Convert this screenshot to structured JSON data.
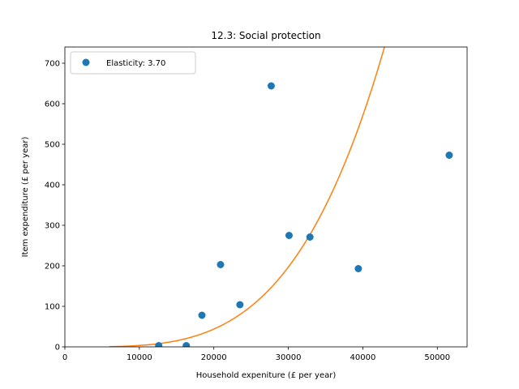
{
  "chart_data": {
    "type": "scatter",
    "title": "12.3: Social protection",
    "xlabel": "Household expeniture (£ per year)",
    "ylabel": "Item expenditure (£ per year)",
    "xlim": [
      0,
      54000
    ],
    "ylim": [
      0,
      740
    ],
    "xticks": [
      0,
      10000,
      20000,
      30000,
      40000,
      50000
    ],
    "yticks": [
      0,
      100,
      200,
      300,
      400,
      500,
      600,
      700
    ],
    "legend_position": "top-left",
    "series": [
      {
        "name": "Elasticity: 3.70",
        "kind": "points",
        "color": "#1f77b4",
        "points": [
          {
            "x": 12600,
            "y": 3
          },
          {
            "x": 16300,
            "y": 3
          },
          {
            "x": 18400,
            "y": 78
          },
          {
            "x": 20900,
            "y": 203
          },
          {
            "x": 23500,
            "y": 104
          },
          {
            "x": 27700,
            "y": 644
          },
          {
            "x": 30100,
            "y": 275
          },
          {
            "x": 32900,
            "y": 271
          },
          {
            "x": 39400,
            "y": 193
          },
          {
            "x": 51600,
            "y": 473
          }
        ]
      },
      {
        "kind": "fit-curve",
        "color": "#ff7f0e",
        "model": "y = a * x^b",
        "a": 250,
        "x_ref": 32000,
        "b": 3.7,
        "x_range": [
          6000,
          44200
        ]
      }
    ]
  }
}
